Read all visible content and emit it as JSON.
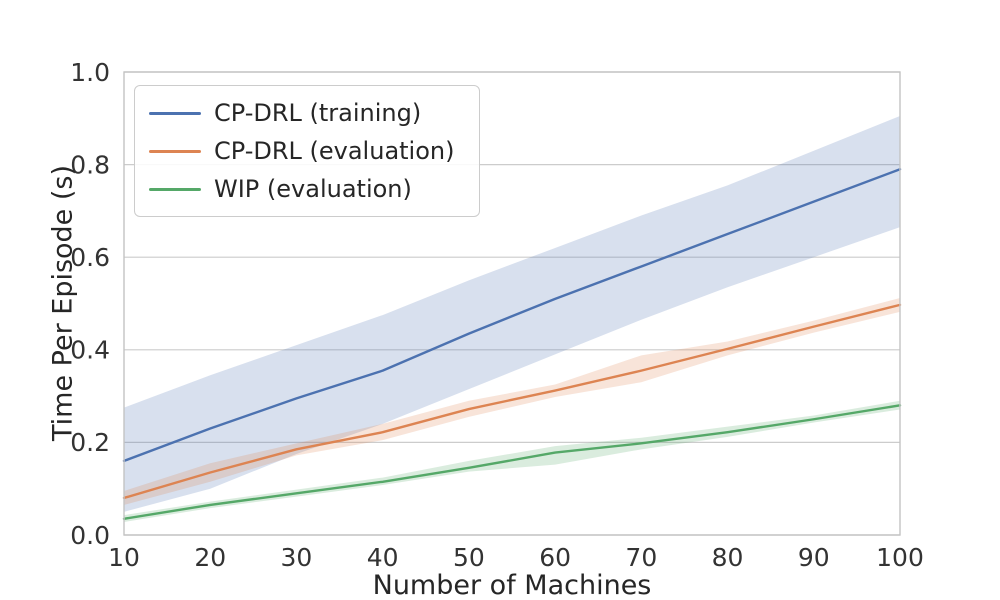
{
  "figure": {
    "xlabel": "Number of Machines",
    "ylabel": "Time Per Episode (s)"
  },
  "chart_data": {
    "type": "line",
    "title": "",
    "xlabel": "Number of Machines",
    "ylabel": "Time Per Episode (s)",
    "xlim": [
      10,
      100
    ],
    "ylim": [
      0.0,
      1.0
    ],
    "x_ticks": [
      10,
      20,
      30,
      40,
      50,
      60,
      70,
      80,
      90,
      100
    ],
    "y_ticks": [
      0.0,
      0.2,
      0.4,
      0.6,
      0.8,
      1.0
    ],
    "y_tick_labels": [
      "0.0",
      "0.2",
      "0.4",
      "0.6",
      "0.8",
      "1.0"
    ],
    "x_tick_labels": [
      "10",
      "20",
      "30",
      "40",
      "50",
      "60",
      "70",
      "80",
      "90",
      "100"
    ],
    "grid": "horizontal",
    "legend_position": "upper left",
    "x": [
      10,
      20,
      30,
      40,
      50,
      60,
      70,
      80,
      90,
      100
    ],
    "series": [
      {
        "name": "CP-DRL (training)",
        "color": "#4C72B0",
        "values": [
          0.16,
          0.23,
          0.295,
          0.355,
          0.435,
          0.51,
          0.58,
          0.65,
          0.72,
          0.79
        ],
        "band_low": [
          0.05,
          0.1,
          0.175,
          0.24,
          0.315,
          0.39,
          0.465,
          0.535,
          0.6,
          0.665
        ],
        "band_high": [
          0.275,
          0.345,
          0.41,
          0.475,
          0.55,
          0.62,
          0.69,
          0.755,
          0.83,
          0.905
        ]
      },
      {
        "name": "CP-DRL (evaluation)",
        "color": "#DD8452",
        "values": [
          0.08,
          0.135,
          0.185,
          0.222,
          0.272,
          0.312,
          0.355,
          0.402,
          0.45,
          0.497
        ],
        "band_low": [
          0.065,
          0.115,
          0.172,
          0.205,
          0.255,
          0.298,
          0.33,
          0.388,
          0.437,
          0.482
        ],
        "band_high": [
          0.095,
          0.155,
          0.198,
          0.24,
          0.29,
          0.325,
          0.388,
          0.418,
          0.463,
          0.512
        ]
      },
      {
        "name": "WIP (evaluation)",
        "color": "#55A868",
        "values": [
          0.035,
          0.065,
          0.09,
          0.115,
          0.145,
          0.178,
          0.198,
          0.222,
          0.25,
          0.28
        ],
        "band_low": [
          0.028,
          0.058,
          0.083,
          0.108,
          0.137,
          0.152,
          0.185,
          0.212,
          0.243,
          0.271
        ],
        "band_high": [
          0.043,
          0.072,
          0.098,
          0.124,
          0.16,
          0.192,
          0.21,
          0.234,
          0.258,
          0.29
        ]
      }
    ],
    "style": {
      "grid_color": "#cccccc",
      "spine_color": "#c3c3c3",
      "tick_label_color": "#333333",
      "band_opacity": 0.22,
      "line_width": 2.4,
      "background": "#ffffff"
    }
  }
}
